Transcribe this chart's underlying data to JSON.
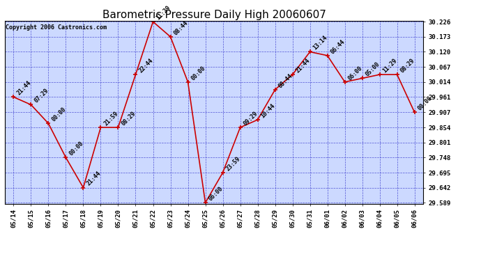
{
  "title": "Barometric Pressure Daily High 20060607",
  "copyright": "Copyright 2006 Castronics.com",
  "x_labels": [
    "05/14",
    "05/15",
    "05/16",
    "05/17",
    "05/18",
    "05/19",
    "05/20",
    "05/21",
    "05/22",
    "05/23",
    "05/24",
    "05/25",
    "05/26",
    "05/27",
    "05/28",
    "05/29",
    "05/30",
    "05/31",
    "06/01",
    "06/02",
    "06/03",
    "06/04",
    "06/05",
    "06/06"
  ],
  "y_values": [
    29.961,
    29.934,
    29.868,
    29.748,
    29.642,
    29.854,
    29.854,
    30.04,
    30.226,
    30.173,
    30.014,
    29.589,
    29.695,
    29.854,
    29.881,
    29.987,
    30.04,
    30.12,
    30.107,
    30.014,
    30.027,
    30.04,
    30.04,
    29.907
  ],
  "point_labels": [
    "21:44",
    "07:29",
    "00:00",
    "00:00",
    "21:44",
    "21:59",
    "08:29",
    "22:44",
    "11:29",
    "08:44",
    "00:00",
    "06:00",
    "23:59",
    "09:29",
    "10:44",
    "08:44",
    "21:44",
    "13:14",
    "06:44",
    "06:00",
    "05:00",
    "11:29",
    "08:29",
    "00:00"
  ],
  "line_color": "#cc0000",
  "marker_color": "#cc0000",
  "bg_color": "#ffffff",
  "plot_bg_color": "#ccd9ff",
  "grid_color": "#3333cc",
  "title_fontsize": 11,
  "label_fontsize": 6,
  "tick_fontsize": 6.5,
  "copyright_fontsize": 6,
  "ylim_min": 29.589,
  "ylim_max": 30.226,
  "ytick_values": [
    29.589,
    29.642,
    29.695,
    29.748,
    29.801,
    29.854,
    29.907,
    29.961,
    30.014,
    30.067,
    30.12,
    30.173,
    30.226
  ]
}
